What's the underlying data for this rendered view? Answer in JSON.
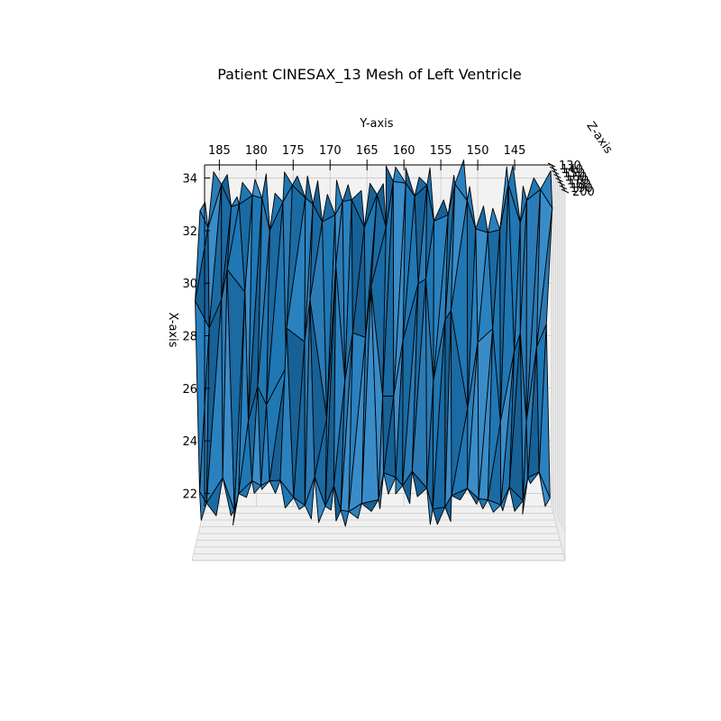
{
  "chart_data": {
    "type": "3d-mesh",
    "title": "Patient CINESAX_13 Mesh of Left Ventricle",
    "xlabel": "X-axis",
    "ylabel": "Y-axis",
    "zlabel": "Z-axis",
    "x_ticks": [
      "22",
      "24",
      "26",
      "28",
      "30",
      "32",
      "34"
    ],
    "y_ticks": [
      "185",
      "180",
      "175",
      "170",
      "165",
      "160",
      "155",
      "150",
      "145"
    ],
    "z_ticks": [
      "130",
      "140",
      "150",
      "160",
      "170",
      "180",
      "190",
      "200"
    ],
    "xlim": [
      21.5,
      34.5
    ],
    "ylim": [
      187,
      140
    ],
    "zlim": [
      130,
      200
    ],
    "grid": true,
    "mesh_color": "#1f77b4",
    "edge_color": "#000000"
  }
}
